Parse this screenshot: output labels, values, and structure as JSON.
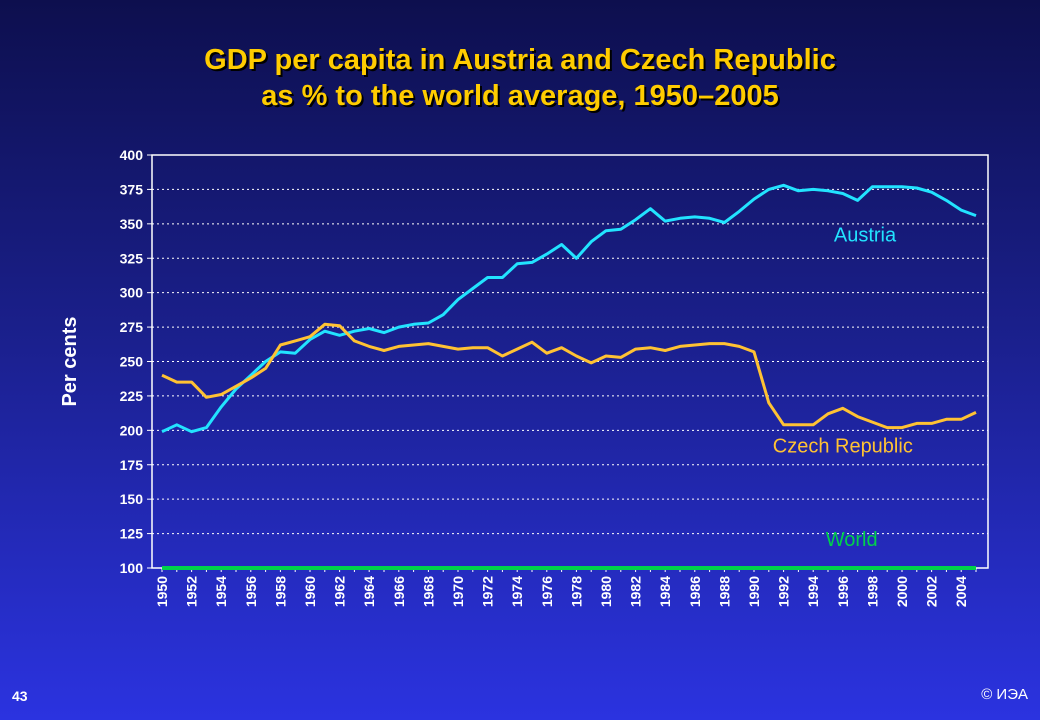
{
  "slide": {
    "title_line1": "GDP per capita in Austria and Czech Republic",
    "title_line2": "as % to the world average, 1950–2005",
    "number": "43",
    "copyright": "© ИЭА"
  },
  "chart_data": {
    "type": "line",
    "title": "GDP per capita in Austria and Czech Republic as % to the world average, 1950–2005",
    "xlabel": "",
    "ylabel": "Per cents",
    "xlim": [
      1950,
      2005
    ],
    "ylim": [
      100,
      400
    ],
    "y_ticks": [
      100,
      125,
      150,
      175,
      200,
      225,
      250,
      275,
      300,
      325,
      350,
      375,
      400
    ],
    "x_tick_labels": [
      "1950",
      "1952",
      "1954",
      "1956",
      "1958",
      "1960",
      "1962",
      "1964",
      "1966",
      "1968",
      "1970",
      "1972",
      "1974",
      "1976",
      "1978",
      "1980",
      "1982",
      "1984",
      "1986",
      "1988",
      "1990",
      "1992",
      "1994",
      "1996",
      "1998",
      "2000",
      "2002",
      "2004"
    ],
    "grid": "horizontal dotted",
    "x": [
      1950,
      1951,
      1952,
      1953,
      1954,
      1955,
      1956,
      1957,
      1958,
      1959,
      1960,
      1961,
      1962,
      1963,
      1964,
      1965,
      1966,
      1967,
      1968,
      1969,
      1970,
      1971,
      1972,
      1973,
      1974,
      1975,
      1976,
      1977,
      1978,
      1979,
      1980,
      1981,
      1982,
      1983,
      1984,
      1985,
      1986,
      1987,
      1988,
      1989,
      1990,
      1991,
      1992,
      1993,
      1994,
      1995,
      1996,
      1997,
      1998,
      1999,
      2000,
      2001,
      2002,
      2003,
      2004,
      2005
    ],
    "series": [
      {
        "name": "Austria",
        "color": "#22e3ff",
        "values": [
          199,
          204,
          199,
          202,
          217,
          230,
          240,
          250,
          257,
          256,
          266,
          272,
          269,
          272,
          274,
          271,
          275,
          277,
          278,
          284,
          295,
          303,
          311,
          311,
          321,
          322,
          328,
          335,
          325,
          337,
          345,
          346,
          353,
          361,
          352,
          354,
          355,
          354,
          351,
          359,
          368,
          375,
          378,
          374,
          375,
          374,
          372,
          367,
          377,
          377,
          377,
          376,
          373,
          367,
          360,
          356
        ]
      },
      {
        "name": "Czech Republic",
        "color": "#ffc233",
        "values": [
          240,
          235,
          235,
          224,
          226,
          232,
          238,
          245,
          262,
          265,
          268,
          277,
          276,
          265,
          261,
          258,
          261,
          262,
          263,
          261,
          259,
          260,
          260,
          254,
          259,
          264,
          256,
          260,
          254,
          249,
          254,
          253,
          259,
          260,
          258,
          261,
          262,
          263,
          263,
          261,
          257,
          220,
          204,
          204,
          204,
          212,
          216,
          210,
          206,
          202,
          202,
          205,
          205,
          208,
          208,
          213
        ]
      },
      {
        "name": "World",
        "color": "#00d24a",
        "values": [
          100,
          100,
          100,
          100,
          100,
          100,
          100,
          100,
          100,
          100,
          100,
          100,
          100,
          100,
          100,
          100,
          100,
          100,
          100,
          100,
          100,
          100,
          100,
          100,
          100,
          100,
          100,
          100,
          100,
          100,
          100,
          100,
          100,
          100,
          100,
          100,
          100,
          100,
          100,
          100,
          100,
          100,
          100,
          100,
          100,
          100,
          100,
          100,
          100,
          100,
          100,
          100,
          100,
          100,
          100,
          100
        ]
      }
    ]
  }
}
